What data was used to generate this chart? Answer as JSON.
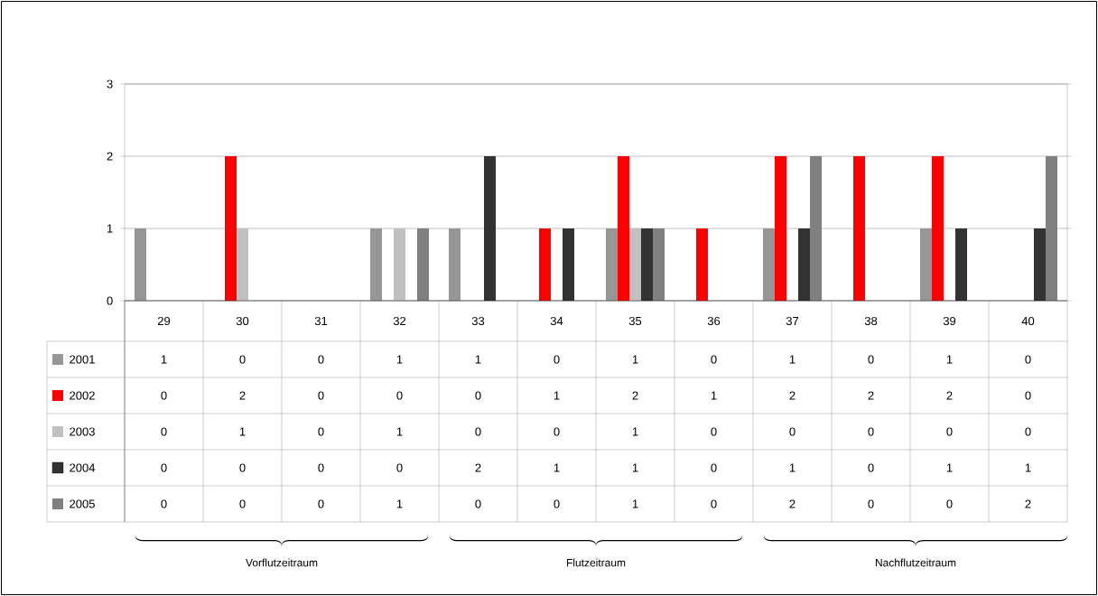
{
  "chart_data": {
    "type": "bar",
    "categories": [
      "29",
      "30",
      "31",
      "32",
      "33",
      "34",
      "35",
      "36",
      "37",
      "38",
      "39",
      "40"
    ],
    "series": [
      {
        "name": "2001",
        "color": "#969696",
        "values": [
          1,
          0,
          0,
          1,
          1,
          0,
          1,
          0,
          1,
          0,
          1,
          0
        ]
      },
      {
        "name": "2002",
        "color": "#ff0000",
        "values": [
          0,
          2,
          0,
          0,
          0,
          1,
          2,
          1,
          2,
          2,
          2,
          0
        ]
      },
      {
        "name": "2003",
        "color": "#c0c0c0",
        "values": [
          0,
          1,
          0,
          1,
          0,
          0,
          1,
          0,
          0,
          0,
          0,
          0
        ]
      },
      {
        "name": "2004",
        "color": "#333333",
        "values": [
          0,
          0,
          0,
          0,
          2,
          1,
          1,
          0,
          1,
          0,
          1,
          1
        ]
      },
      {
        "name": "2005",
        "color": "#808080",
        "values": [
          0,
          0,
          0,
          1,
          0,
          0,
          1,
          0,
          2,
          0,
          0,
          2
        ]
      }
    ],
    "ylim": [
      0,
      3
    ],
    "yticks": [
      0,
      1,
      2,
      3
    ],
    "grid": "y",
    "legend": "bottom left",
    "data_labels": true,
    "annotations": [
      "Vorflutzeitraum",
      "Flutzeitraum",
      "Nachflutzeitraum"
    ]
  }
}
